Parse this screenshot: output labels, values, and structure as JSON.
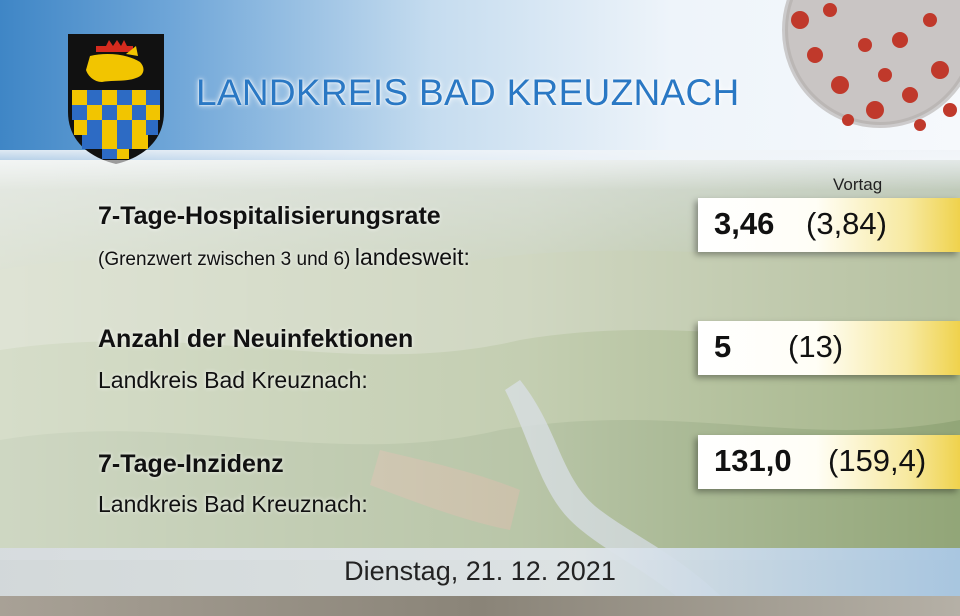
{
  "header": {
    "title": "LANDKREIS BAD KREUZNACH"
  },
  "column_header": "Vortag",
  "metrics": [
    {
      "label_bold": "7-Tage-Hospitalisierungsrate",
      "sub_small": "(Grenzwert zwischen 3 und 6)",
      "sub_normal": "landesweit:",
      "value": "3,46",
      "previous": "(3,84)"
    },
    {
      "label_bold": "Anzahl der Neuinfektionen",
      "sub_normal": "Landkreis Bad Kreuznach:",
      "value": "5",
      "previous": "(13)"
    },
    {
      "label_bold": "7-Tage-Inzidenz",
      "sub_normal": "Landkreis Bad Kreuznach:",
      "value": "131,0",
      "previous": "(159,4)"
    }
  ],
  "footer": {
    "date": "Dienstag, 21. 12. 2021"
  },
  "colors": {
    "title": "#2a78c4",
    "box_accent": "#efd24c",
    "header_blue": "#3f86c6"
  }
}
